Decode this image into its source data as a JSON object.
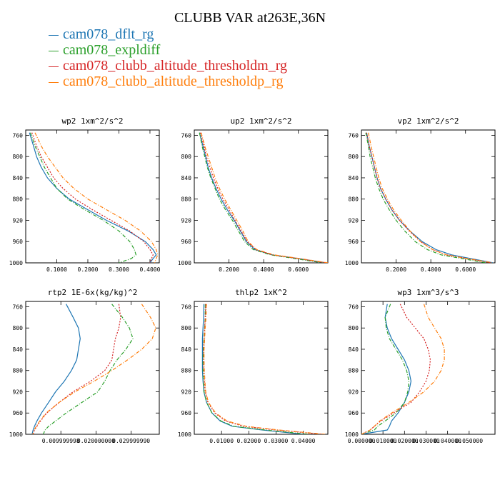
{
  "title": "CLUBB VAR at263E,36N",
  "legend": [
    {
      "label": "cam078_dflt_rg",
      "color": "#1f77b4",
      "dash": ""
    },
    {
      "label": "cam078_expldiff",
      "color": "#2ca02c",
      "dash": "5,2,1,2"
    },
    {
      "label": "cam078_clubb_altitude_thresholdm_rg",
      "color": "#d62728",
      "dash": "2,2"
    },
    {
      "label": "cam078_clubb_altitude_thresholdp_rg",
      "color": "#ff7f0e",
      "dash": "5,2,1,2"
    }
  ],
  "chart_data": [
    {
      "type": "line",
      "title": "wp2  1xm^2/s^2",
      "xlim": [
        0,
        0.43
      ],
      "ylim": [
        1000,
        750
      ],
      "xticks": [
        0.1,
        0.2,
        0.3,
        0.4
      ],
      "xtick_labels": [
        "0.1000",
        "0.2000",
        "0.3000",
        "0.4000"
      ],
      "yticks": [
        760,
        800,
        840,
        880,
        920,
        960,
        1000
      ],
      "ytick_labels": [
        "760",
        "800",
        "840",
        "880",
        "920",
        "960",
        "1000"
      ],
      "y": [
        755,
        780,
        800,
        820,
        840,
        860,
        880,
        900,
        920,
        940,
        960,
        975,
        985,
        992,
        1000
      ],
      "series": [
        {
          "name": "cam078_dflt_rg",
          "x": [
            0.012,
            0.025,
            0.035,
            0.05,
            0.07,
            0.1,
            0.14,
            0.2,
            0.26,
            0.33,
            0.385,
            0.41,
            0.42,
            0.41,
            0.4
          ]
        },
        {
          "name": "cam078_expldiff",
          "x": [
            0.015,
            0.03,
            0.045,
            0.06,
            0.08,
            0.1,
            0.135,
            0.19,
            0.25,
            0.3,
            0.335,
            0.35,
            0.355,
            0.34,
            0.3
          ]
        },
        {
          "name": "cam078_clubb_altitude_thresholdm_rg",
          "x": [
            0.02,
            0.035,
            0.05,
            0.07,
            0.09,
            0.12,
            0.16,
            0.215,
            0.275,
            0.335,
            0.38,
            0.4,
            0.41,
            0.405,
            0.4
          ]
        },
        {
          "name": "cam078_clubb_altitude_thresholdp_rg",
          "x": [
            0.03,
            0.05,
            0.07,
            0.095,
            0.12,
            0.155,
            0.2,
            0.26,
            0.32,
            0.37,
            0.405,
            0.42,
            0.425,
            0.42,
            0.415
          ]
        }
      ]
    },
    {
      "type": "line",
      "title": "up2  1xm^2/s^2",
      "xlim": [
        0,
        0.77
      ],
      "ylim": [
        1000,
        750
      ],
      "xticks": [
        0.2,
        0.4,
        0.6
      ],
      "xtick_labels": [
        "0.2000",
        "0.4000",
        "0.6000"
      ],
      "yticks": [
        760,
        800,
        840,
        880,
        920,
        960,
        1000
      ],
      "ytick_labels": [
        "760",
        "800",
        "840",
        "880",
        "920",
        "960",
        "1000"
      ],
      "y": [
        755,
        780,
        800,
        820,
        840,
        860,
        880,
        900,
        920,
        940,
        960,
        975,
        985,
        992,
        1000
      ],
      "series": [
        {
          "name": "cam078_dflt_rg",
          "x": [
            0.03,
            0.05,
            0.065,
            0.08,
            0.1,
            0.125,
            0.155,
            0.19,
            0.23,
            0.265,
            0.3,
            0.35,
            0.45,
            0.6,
            0.76
          ]
        },
        {
          "name": "cam078_expldiff",
          "x": [
            0.03,
            0.045,
            0.06,
            0.075,
            0.095,
            0.12,
            0.145,
            0.18,
            0.22,
            0.255,
            0.29,
            0.34,
            0.44,
            0.58,
            0.74
          ]
        },
        {
          "name": "cam078_clubb_altitude_thresholdm_rg",
          "x": [
            0.035,
            0.055,
            0.07,
            0.09,
            0.11,
            0.135,
            0.165,
            0.2,
            0.235,
            0.27,
            0.305,
            0.355,
            0.45,
            0.6,
            0.76
          ]
        },
        {
          "name": "cam078_clubb_altitude_thresholdp_rg",
          "x": [
            0.04,
            0.06,
            0.08,
            0.1,
            0.12,
            0.145,
            0.175,
            0.21,
            0.245,
            0.28,
            0.31,
            0.36,
            0.46,
            0.61,
            0.77
          ]
        }
      ]
    },
    {
      "type": "line",
      "title": "vp2  1xm^2/s^2",
      "xlim": [
        0,
        0.77
      ],
      "ylim": [
        1000,
        750
      ],
      "xticks": [
        0.2,
        0.4,
        0.6
      ],
      "xtick_labels": [
        "0.2000",
        "0.4000",
        "0.6000"
      ],
      "yticks": [
        760,
        800,
        840,
        880,
        920,
        960,
        1000
      ],
      "ytick_labels": [
        "760",
        "800",
        "840",
        "880",
        "920",
        "960",
        "1000"
      ],
      "y": [
        755,
        780,
        800,
        820,
        840,
        860,
        880,
        900,
        920,
        940,
        960,
        975,
        985,
        992,
        1000
      ],
      "series": [
        {
          "name": "cam078_dflt_rg",
          "x": [
            0.03,
            0.045,
            0.06,
            0.075,
            0.09,
            0.11,
            0.14,
            0.175,
            0.22,
            0.28,
            0.35,
            0.43,
            0.52,
            0.63,
            0.76
          ]
        },
        {
          "name": "cam078_expldiff",
          "x": [
            0.025,
            0.04,
            0.05,
            0.065,
            0.08,
            0.1,
            0.125,
            0.16,
            0.2,
            0.25,
            0.31,
            0.38,
            0.46,
            0.58,
            0.72
          ]
        },
        {
          "name": "cam078_clubb_altitude_thresholdm_rg",
          "x": [
            0.03,
            0.045,
            0.06,
            0.075,
            0.09,
            0.11,
            0.14,
            0.175,
            0.22,
            0.275,
            0.34,
            0.41,
            0.49,
            0.61,
            0.75
          ]
        },
        {
          "name": "cam078_clubb_altitude_thresholdp_rg",
          "x": [
            0.04,
            0.055,
            0.07,
            0.085,
            0.1,
            0.12,
            0.15,
            0.185,
            0.23,
            0.28,
            0.34,
            0.41,
            0.49,
            0.61,
            0.76
          ]
        }
      ]
    },
    {
      "type": "line",
      "title": "rtp2  1E-6x(kg/kg)^2",
      "xlim": [
        0,
        0.038
      ],
      "ylim": [
        1000,
        750
      ],
      "xticks": [
        0.01,
        0.02,
        0.03
      ],
      "xtick_labels": [
        "0.009999998",
        "0.020000000",
        "0.029999990"
      ],
      "yticks": [
        760,
        800,
        840,
        880,
        920,
        960,
        1000
      ],
      "ytick_labels": [
        "760",
        "800",
        "840",
        "880",
        "920",
        "960",
        "1000"
      ],
      "y": [
        755,
        780,
        800,
        820,
        840,
        860,
        880,
        900,
        920,
        940,
        960,
        975,
        985,
        992,
        1000
      ],
      "series": [
        {
          "name": "cam078_dflt_rg",
          "x": [
            0.0115,
            0.0135,
            0.015,
            0.0155,
            0.015,
            0.0145,
            0.013,
            0.011,
            0.0085,
            0.0065,
            0.0045,
            0.0032,
            0.0025,
            0.0021,
            0.0018
          ]
        },
        {
          "name": "cam078_expldiff",
          "x": [
            0.0245,
            0.0275,
            0.0295,
            0.0305,
            0.0285,
            0.026,
            0.024,
            0.0225,
            0.0205,
            0.016,
            0.0115,
            0.0085,
            0.0065,
            0.0055,
            0.005
          ]
        },
        {
          "name": "cam078_clubb_altitude_thresholdm_rg",
          "x": [
            0.0265,
            0.027,
            0.0265,
            0.0255,
            0.025,
            0.0245,
            0.0225,
            0.0185,
            0.0135,
            0.0095,
            0.006,
            0.0042,
            0.0032,
            0.0025,
            0.0021
          ]
        },
        {
          "name": "cam078_clubb_altitude_thresholdp_rg",
          "x": [
            0.033,
            0.0355,
            0.037,
            0.036,
            0.033,
            0.029,
            0.0245,
            0.0195,
            0.014,
            0.0095,
            0.0058,
            0.004,
            0.003,
            0.0024,
            0.002
          ]
        }
      ]
    },
    {
      "type": "line",
      "title": "thlp2  1xK^2",
      "xlim": [
        0,
        0.049
      ],
      "ylim": [
        1000,
        750
      ],
      "xticks": [
        0.01,
        0.02,
        0.03,
        0.04
      ],
      "xtick_labels": [
        "0.01000",
        "0.02000",
        "0.03000",
        "0.04000"
      ],
      "yticks": [
        760,
        800,
        840,
        880,
        920,
        960,
        1000
      ],
      "ytick_labels": [
        "760",
        "800",
        "840",
        "880",
        "920",
        "960",
        "1000"
      ],
      "y": [
        755,
        780,
        800,
        820,
        840,
        860,
        880,
        900,
        920,
        940,
        960,
        975,
        985,
        992,
        1000
      ],
      "series": [
        {
          "name": "cam078_dflt_rg",
          "x": [
            0.0035,
            0.0034,
            0.0032,
            0.003,
            0.003,
            0.003,
            0.003,
            0.0032,
            0.0035,
            0.0045,
            0.0065,
            0.0095,
            0.014,
            0.025,
            0.04
          ]
        },
        {
          "name": "cam078_expldiff",
          "x": [
            0.004,
            0.004,
            0.0038,
            0.0035,
            0.0033,
            0.0032,
            0.0032,
            0.0033,
            0.0036,
            0.0045,
            0.0065,
            0.0098,
            0.0145,
            0.026,
            0.042
          ]
        },
        {
          "name": "cam078_clubb_altitude_thresholdm_rg",
          "x": [
            0.0042,
            0.004,
            0.0038,
            0.0036,
            0.0034,
            0.0034,
            0.0035,
            0.0037,
            0.004,
            0.005,
            0.0075,
            0.0115,
            0.018,
            0.03,
            0.047
          ]
        },
        {
          "name": "cam078_clubb_altitude_thresholdp_rg",
          "x": [
            0.0045,
            0.0043,
            0.004,
            0.0038,
            0.0036,
            0.0036,
            0.0037,
            0.0039,
            0.0042,
            0.0052,
            0.0078,
            0.012,
            0.019,
            0.031,
            0.048
          ]
        }
      ]
    },
    {
      "type": "line",
      "title": "wp3  1xm^3/s^3",
      "xlim": [
        0,
        0.062
      ],
      "ylim": [
        1000,
        750
      ],
      "xticks": [
        0,
        0.01,
        0.02,
        0.03,
        0.04,
        0.05
      ],
      "xtick_labels": [
        "0.000000",
        "0.010000",
        "0.020000",
        "0.030000",
        "0.040000",
        "0.050000"
      ],
      "yticks": [
        760,
        800,
        840,
        880,
        920,
        960,
        1000
      ],
      "ytick_labels": [
        "760",
        "800",
        "840",
        "880",
        "920",
        "960",
        "1000"
      ],
      "y": [
        755,
        780,
        800,
        820,
        840,
        860,
        880,
        900,
        920,
        940,
        960,
        975,
        985,
        992,
        1000
      ],
      "series": [
        {
          "name": "cam078_dflt_rg",
          "x": [
            0.012,
            0.011,
            0.012,
            0.014,
            0.017,
            0.02,
            0.022,
            0.023,
            0.022,
            0.02,
            0.017,
            0.014,
            0.013,
            0.012,
            0.0
          ]
        },
        {
          "name": "cam078_expldiff",
          "x": [
            0.0135,
            0.011,
            0.0115,
            0.013,
            0.016,
            0.019,
            0.021,
            0.022,
            0.0215,
            0.02,
            0.016,
            0.011,
            0.0075,
            0.006,
            0.0
          ]
        },
        {
          "name": "cam078_clubb_altitude_thresholdm_rg",
          "x": [
            0.018,
            0.021,
            0.025,
            0.029,
            0.031,
            0.032,
            0.0315,
            0.03,
            0.027,
            0.023,
            0.015,
            0.009,
            0.006,
            0.004,
            0.0
          ]
        },
        {
          "name": "cam078_clubb_altitude_thresholdp_rg",
          "x": [
            0.029,
            0.031,
            0.034,
            0.037,
            0.0385,
            0.0385,
            0.037,
            0.034,
            0.029,
            0.022,
            0.014,
            0.0085,
            0.006,
            0.004,
            0.0
          ]
        }
      ]
    }
  ]
}
